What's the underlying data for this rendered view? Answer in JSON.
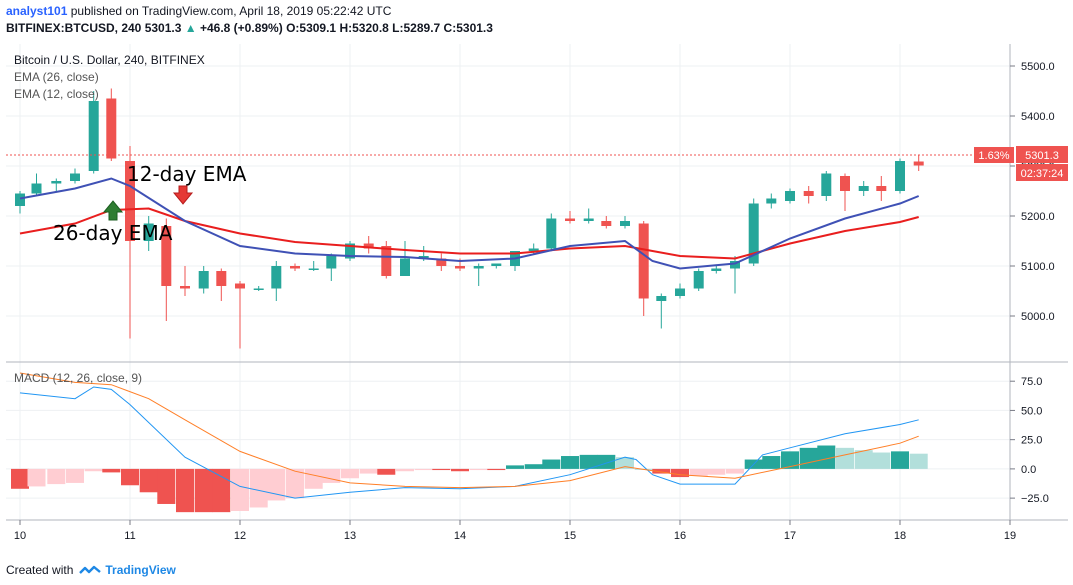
{
  "header": {
    "user": "analyst101",
    "published": " published on TradingView.com, April 18, 2019 05:22:42 UTC",
    "symbol": "BITFINEX:BTCUSD, 240",
    "last": "5301.3",
    "change": "+46.8 (+0.89%)",
    "o_label": "O:",
    "o": "5309.1",
    "h_label": "H:",
    "h": "5320.8",
    "l_label": "L:",
    "l": "5289.7",
    "c_label": "C:",
    "c": "5301.3"
  },
  "legend": {
    "title": "Bitcoin / U.S. Dollar, 240, BITFINEX",
    "ema26": "EMA (26, close)",
    "ema12": "EMA (12, close)",
    "macd": "MACD (12, 26, close, 9)"
  },
  "annotations": {
    "ema12": "12-day EMA",
    "ema26": "26-day EMA"
  },
  "price_tag": {
    "pct": "1.63%",
    "price": "5301.3",
    "countdown": "02:37:24"
  },
  "footer": {
    "created_with": "Created with",
    "brand": "TradingView"
  },
  "colors": {
    "up": "#26a69a",
    "down": "#ef5350",
    "ema12": "#3f51b5",
    "ema26": "#e91e1e",
    "macd": "#2196f3",
    "signal": "#ff7f27",
    "hist_pos": "#26a69a",
    "hist_pos_light": "#b2dfdb",
    "hist_neg": "#ef5350",
    "hist_neg_light": "#ffcdd2"
  },
  "chart_data": {
    "type": "candlestick",
    "x_ticks": [
      "10",
      "11",
      "12",
      "13",
      "14",
      "15",
      "16",
      "17",
      "18",
      "19"
    ],
    "price_ticks": [
      "5500.0",
      "5400.0",
      "5300.0",
      "5200.0",
      "5100.0",
      "5000.0"
    ],
    "price_range": [
      4920,
      5540
    ],
    "candles": [
      {
        "t": 0.0,
        "o": 5220,
        "h": 5250,
        "l": 5205,
        "c": 5245
      },
      {
        "t": 0.15,
        "o": 5245,
        "h": 5285,
        "l": 5240,
        "c": 5265
      },
      {
        "t": 0.33,
        "o": 5265,
        "h": 5275,
        "l": 5250,
        "c": 5270
      },
      {
        "t": 0.5,
        "o": 5270,
        "h": 5295,
        "l": 5265,
        "c": 5285
      },
      {
        "t": 0.67,
        "o": 5290,
        "h": 5450,
        "l": 5285,
        "c": 5430
      },
      {
        "t": 0.83,
        "o": 5435,
        "h": 5455,
        "l": 5310,
        "c": 5315
      },
      {
        "t": 1.0,
        "o": 5310,
        "h": 5340,
        "l": 4955,
        "c": 5150
      },
      {
        "t": 1.17,
        "o": 5150,
        "h": 5200,
        "l": 5130,
        "c": 5185
      },
      {
        "t": 1.33,
        "o": 5180,
        "h": 5195,
        "l": 4990,
        "c": 5060
      },
      {
        "t": 1.5,
        "o": 5060,
        "h": 5100,
        "l": 5040,
        "c": 5055
      },
      {
        "t": 1.67,
        "o": 5055,
        "h": 5100,
        "l": 5045,
        "c": 5090
      },
      {
        "t": 1.83,
        "o": 5090,
        "h": 5095,
        "l": 5030,
        "c": 5060
      },
      {
        "t": 2.0,
        "o": 5065,
        "h": 5070,
        "l": 4935,
        "c": 5055
      },
      {
        "t": 2.17,
        "o": 5055,
        "h": 5060,
        "l": 5050,
        "c": 5055
      },
      {
        "t": 2.33,
        "o": 5055,
        "h": 5110,
        "l": 5030,
        "c": 5100
      },
      {
        "t": 2.5,
        "o": 5100,
        "h": 5105,
        "l": 5090,
        "c": 5095
      },
      {
        "t": 2.67,
        "o": 5095,
        "h": 5110,
        "l": 5090,
        "c": 5095
      },
      {
        "t": 2.83,
        "o": 5095,
        "h": 5125,
        "l": 5070,
        "c": 5120
      },
      {
        "t": 3.0,
        "o": 5115,
        "h": 5150,
        "l": 5110,
        "c": 5145
      },
      {
        "t": 3.17,
        "o": 5145,
        "h": 5160,
        "l": 5125,
        "c": 5135
      },
      {
        "t": 3.33,
        "o": 5140,
        "h": 5150,
        "l": 5075,
        "c": 5080
      },
      {
        "t": 3.5,
        "o": 5080,
        "h": 5150,
        "l": 5080,
        "c": 5115
      },
      {
        "t": 3.67,
        "o": 5115,
        "h": 5140,
        "l": 5110,
        "c": 5120
      },
      {
        "t": 3.83,
        "o": 5115,
        "h": 5125,
        "l": 5090,
        "c": 5100
      },
      {
        "t": 4.0,
        "o": 5100,
        "h": 5115,
        "l": 5090,
        "c": 5095
      },
      {
        "t": 4.17,
        "o": 5095,
        "h": 5105,
        "l": 5060,
        "c": 5100
      },
      {
        "t": 4.33,
        "o": 5100,
        "h": 5105,
        "l": 5095,
        "c": 5105
      },
      {
        "t": 4.5,
        "o": 5100,
        "h": 5130,
        "l": 5090,
        "c": 5130
      },
      {
        "t": 4.67,
        "o": 5130,
        "h": 5145,
        "l": 5125,
        "c": 5135
      },
      {
        "t": 4.83,
        "o": 5135,
        "h": 5205,
        "l": 5130,
        "c": 5195
      },
      {
        "t": 5.0,
        "o": 5195,
        "h": 5210,
        "l": 5185,
        "c": 5190
      },
      {
        "t": 5.17,
        "o": 5190,
        "h": 5215,
        "l": 5185,
        "c": 5195
      },
      {
        "t": 5.33,
        "o": 5190,
        "h": 5200,
        "l": 5175,
        "c": 5180
      },
      {
        "t": 5.5,
        "o": 5180,
        "h": 5200,
        "l": 5175,
        "c": 5190
      },
      {
        "t": 5.67,
        "o": 5185,
        "h": 5190,
        "l": 5000,
        "c": 5035
      },
      {
        "t": 5.83,
        "o": 5030,
        "h": 5045,
        "l": 4975,
        "c": 5040
      },
      {
        "t": 6.0,
        "o": 5040,
        "h": 5065,
        "l": 5035,
        "c": 5055
      },
      {
        "t": 6.17,
        "o": 5055,
        "h": 5095,
        "l": 5050,
        "c": 5090
      },
      {
        "t": 6.33,
        "o": 5090,
        "h": 5100,
        "l": 5085,
        "c": 5095
      },
      {
        "t": 6.5,
        "o": 5095,
        "h": 5120,
        "l": 5045,
        "c": 5110
      },
      {
        "t": 6.67,
        "o": 5105,
        "h": 5235,
        "l": 5100,
        "c": 5225
      },
      {
        "t": 6.83,
        "o": 5225,
        "h": 5245,
        "l": 5215,
        "c": 5235
      },
      {
        "t": 7.0,
        "o": 5230,
        "h": 5255,
        "l": 5225,
        "c": 5250
      },
      {
        "t": 7.17,
        "o": 5250,
        "h": 5260,
        "l": 5225,
        "c": 5240
      },
      {
        "t": 7.33,
        "o": 5240,
        "h": 5290,
        "l": 5230,
        "c": 5285
      },
      {
        "t": 7.5,
        "o": 5280,
        "h": 5285,
        "l": 5210,
        "c": 5250
      },
      {
        "t": 7.67,
        "o": 5250,
        "h": 5270,
        "l": 5240,
        "c": 5260
      },
      {
        "t": 7.83,
        "o": 5260,
        "h": 5280,
        "l": 5230,
        "c": 5250
      },
      {
        "t": 8.0,
        "o": 5250,
        "h": 5315,
        "l": 5245,
        "c": 5310
      },
      {
        "t": 8.17,
        "o": 5309,
        "h": 5321,
        "l": 5290,
        "c": 5301
      }
    ],
    "ema12": [
      [
        0,
        5235
      ],
      [
        0.5,
        5255
      ],
      [
        0.83,
        5275
      ],
      [
        1.0,
        5260
      ],
      [
        1.5,
        5190
      ],
      [
        2.0,
        5140
      ],
      [
        2.5,
        5125
      ],
      [
        3.0,
        5120
      ],
      [
        3.5,
        5118
      ],
      [
        4.0,
        5110
      ],
      [
        4.5,
        5115
      ],
      [
        5.0,
        5140
      ],
      [
        5.5,
        5150
      ],
      [
        5.75,
        5110
      ],
      [
        6.0,
        5095
      ],
      [
        6.5,
        5105
      ],
      [
        7.0,
        5155
      ],
      [
        7.5,
        5195
      ],
      [
        8.0,
        5225
      ],
      [
        8.17,
        5240
      ]
    ],
    "ema26": [
      [
        0,
        5165
      ],
      [
        0.5,
        5185
      ],
      [
        0.83,
        5212
      ],
      [
        1.17,
        5215
      ],
      [
        1.5,
        5190
      ],
      [
        2.0,
        5165
      ],
      [
        2.5,
        5148
      ],
      [
        3.0,
        5140
      ],
      [
        3.5,
        5132
      ],
      [
        4.0,
        5125
      ],
      [
        4.5,
        5125
      ],
      [
        5.0,
        5135
      ],
      [
        5.5,
        5140
      ],
      [
        5.75,
        5130
      ],
      [
        6.0,
        5120
      ],
      [
        6.5,
        5115
      ],
      [
        7.0,
        5145
      ],
      [
        7.5,
        5170
      ],
      [
        8.0,
        5188
      ],
      [
        8.17,
        5198
      ]
    ],
    "macd_ticks": [
      "75.0",
      "50.0",
      "25.0",
      "0.0",
      "−25.0"
    ],
    "macd_range": [
      -42,
      88
    ],
    "macd": [
      [
        0,
        65
      ],
      [
        0.5,
        60
      ],
      [
        0.67,
        70
      ],
      [
        0.83,
        68
      ],
      [
        1.0,
        55
      ],
      [
        1.5,
        10
      ],
      [
        2.0,
        -15
      ],
      [
        2.5,
        -25
      ],
      [
        3.0,
        -20
      ],
      [
        3.5,
        -16
      ],
      [
        4.0,
        -17
      ],
      [
        4.5,
        -15
      ],
      [
        5.0,
        -5
      ],
      [
        5.5,
        10
      ],
      [
        5.6,
        8
      ],
      [
        5.75,
        -5
      ],
      [
        6.0,
        -13
      ],
      [
        6.5,
        -13
      ],
      [
        6.75,
        12
      ],
      [
        7.0,
        18
      ],
      [
        7.5,
        30
      ],
      [
        8.0,
        38
      ],
      [
        8.17,
        42
      ]
    ],
    "signal": [
      [
        0,
        82
      ],
      [
        0.5,
        74
      ],
      [
        0.83,
        72
      ],
      [
        1.17,
        60
      ],
      [
        1.5,
        42
      ],
      [
        2.0,
        15
      ],
      [
        2.5,
        -2
      ],
      [
        3.0,
        -12
      ],
      [
        3.5,
        -15
      ],
      [
        4.0,
        -16
      ],
      [
        4.5,
        -15
      ],
      [
        5.0,
        -10
      ],
      [
        5.5,
        2
      ],
      [
        6.0,
        -5
      ],
      [
        6.5,
        -8
      ],
      [
        7.0,
        2
      ],
      [
        7.5,
        12
      ],
      [
        8.0,
        22
      ],
      [
        8.17,
        28
      ]
    ],
    "histogram": [
      {
        "t": 0.0,
        "v": -17
      },
      {
        "t": 0.15,
        "v": -15
      },
      {
        "t": 0.33,
        "v": -13
      },
      {
        "t": 0.5,
        "v": -12
      },
      {
        "t": 0.67,
        "v": -2
      },
      {
        "t": 0.83,
        "v": -3
      },
      {
        "t": 1.0,
        "v": -14
      },
      {
        "t": 1.17,
        "v": -20
      },
      {
        "t": 1.33,
        "v": -30
      },
      {
        "t": 1.5,
        "v": -37
      },
      {
        "t": 1.67,
        "v": -37
      },
      {
        "t": 1.83,
        "v": -37
      },
      {
        "t": 2.0,
        "v": -36
      },
      {
        "t": 2.17,
        "v": -33
      },
      {
        "t": 2.33,
        "v": -27
      },
      {
        "t": 2.5,
        "v": -25
      },
      {
        "t": 2.67,
        "v": -17
      },
      {
        "t": 2.83,
        "v": -12
      },
      {
        "t": 3.0,
        "v": -8
      },
      {
        "t": 3.17,
        "v": -4
      },
      {
        "t": 3.33,
        "v": -5
      },
      {
        "t": 3.5,
        "v": -2
      },
      {
        "t": 3.67,
        "v": -1
      },
      {
        "t": 3.83,
        "v": -1
      },
      {
        "t": 4.0,
        "v": -2
      },
      {
        "t": 4.17,
        "v": -1
      },
      {
        "t": 4.33,
        "v": -1
      },
      {
        "t": 4.5,
        "v": 3
      },
      {
        "t": 4.67,
        "v": 4
      },
      {
        "t": 4.83,
        "v": 8
      },
      {
        "t": 5.0,
        "v": 11
      },
      {
        "t": 5.17,
        "v": 12
      },
      {
        "t": 5.33,
        "v": 12
      },
      {
        "t": 5.5,
        "v": 10
      },
      {
        "t": 5.67,
        "v": 0
      },
      {
        "t": 5.83,
        "v": -4
      },
      {
        "t": 6.0,
        "v": -7
      },
      {
        "t": 6.17,
        "v": -6
      },
      {
        "t": 6.33,
        "v": -5
      },
      {
        "t": 6.5,
        "v": -4
      },
      {
        "t": 6.67,
        "v": 8
      },
      {
        "t": 6.83,
        "v": 11
      },
      {
        "t": 7.0,
        "v": 15
      },
      {
        "t": 7.17,
        "v": 18
      },
      {
        "t": 7.33,
        "v": 20
      },
      {
        "t": 7.5,
        "v": 18
      },
      {
        "t": 7.67,
        "v": 16
      },
      {
        "t": 7.83,
        "v": 14
      },
      {
        "t": 8.0,
        "v": 15
      },
      {
        "t": 8.17,
        "v": 13
      }
    ]
  }
}
